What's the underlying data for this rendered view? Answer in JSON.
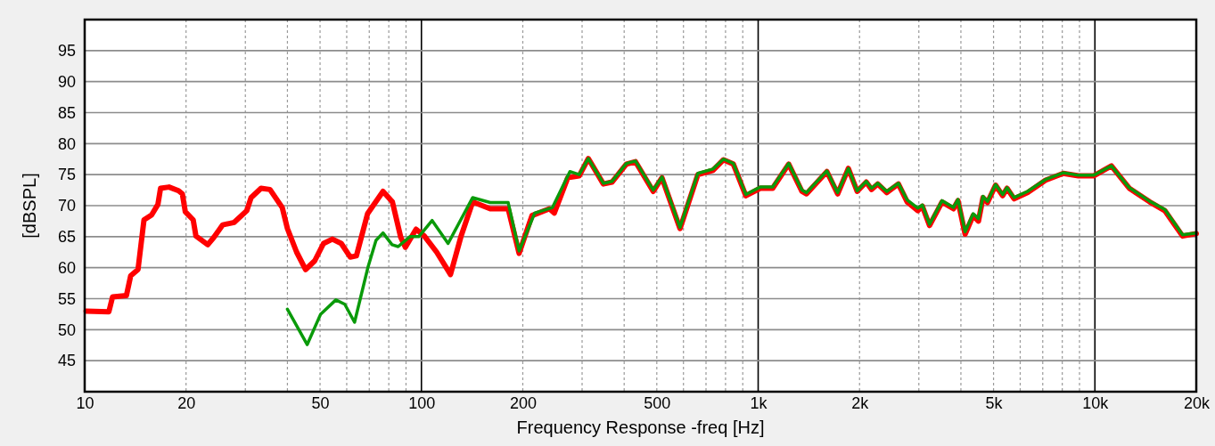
{
  "chart_data": {
    "type": "line",
    "xlabel": "Frequency Response -freq [Hz]",
    "ylabel": "[dBSPL]",
    "log": "x",
    "grid": true,
    "xlim": [
      10,
      20000
    ],
    "ylim": [
      40,
      100
    ],
    "xticks": [
      10,
      20,
      {
        "value": 30,
        "label": null
      },
      {
        "value": 40,
        "label": null
      },
      50,
      {
        "value": 60,
        "label": null
      },
      {
        "value": 70,
        "label": null
      },
      {
        "value": 80,
        "label": null
      },
      {
        "value": 90,
        "label": null
      },
      100,
      200,
      {
        "value": 300,
        "label": null
      },
      {
        "value": 400,
        "label": null
      },
      500,
      {
        "value": 600,
        "label": null
      },
      {
        "value": 700,
        "label": null
      },
      {
        "value": 800,
        "label": null
      },
      {
        "value": 900,
        "label": null
      },
      {
        "value": 1000,
        "label": "1k"
      },
      {
        "value": 2000,
        "label": "2k"
      },
      {
        "value": 3000,
        "label": null
      },
      {
        "value": 4000,
        "label": null
      },
      {
        "value": 5000,
        "label": "5k"
      },
      {
        "value": 6000,
        "label": null
      },
      {
        "value": 7000,
        "label": null
      },
      {
        "value": 8000,
        "label": null
      },
      {
        "value": 9000,
        "label": null
      },
      {
        "value": 10000,
        "label": "10k"
      },
      {
        "value": 20000,
        "label": "20k"
      }
    ],
    "yticks": [
      45,
      50,
      55,
      60,
      65,
      70,
      75,
      80,
      85,
      90,
      95
    ],
    "series": [
      {
        "color": "#ff0000",
        "x": [
          10.1,
          11.8,
          12.1,
          13.3,
          13.7,
          14.4,
          15.0,
          15.8,
          16.5,
          16.8,
          17.8,
          19.0,
          19.5,
          19.9,
          21.0,
          21.4,
          23.2,
          24.2,
          25.7,
          27.8,
          30.3,
          31.2,
          33.4,
          35.5,
          38.6,
          40.0,
          42.6,
          45.3,
          48.2,
          51.2,
          54.4,
          57.8,
          61.5,
          64.1,
          69.2,
          76.9,
          82.0,
          86.8,
          89.6,
          96.4,
          102,
          111,
          122,
          131,
          142,
          160,
          181,
          195,
          213,
          240,
          248,
          272,
          294,
          313,
          347,
          368,
          406,
          432,
          488,
          518,
          586,
          662,
          734,
          789,
          844,
          919,
          1014,
          1104,
          1232,
          1349,
          1392,
          1600,
          1722,
          1853,
          1968,
          2094,
          2172,
          2265,
          2409,
          2608,
          2771,
          2980,
          3074,
          3227,
          3516,
          3802,
          3920,
          4117,
          4350,
          4510,
          4652,
          4797,
          5070,
          5322,
          5483,
          5756,
          6310,
          7129,
          8054,
          8933,
          9908,
          11194,
          12647,
          14554,
          16124,
          18209,
          20000
        ],
        "values": [
          53,
          52.9,
          55.3,
          55.5,
          58.7,
          59.7,
          67.7,
          68.5,
          70.2,
          72.8,
          73,
          72.4,
          71.9,
          69,
          67.7,
          65.1,
          63.7,
          64.9,
          66.9,
          67.3,
          69.2,
          71.3,
          72.8,
          72.6,
          69.7,
          66.3,
          62.5,
          59.7,
          61.1,
          63.9,
          64.6,
          63.9,
          61.7,
          61.9,
          68.7,
          72.3,
          70.6,
          64.9,
          63.3,
          66.2,
          65.1,
          62.5,
          58.9,
          65,
          70.6,
          69.5,
          69.5,
          62.3,
          68.4,
          69.5,
          68.8,
          74.5,
          74.8,
          77.6,
          73.5,
          73.8,
          76.7,
          77.1,
          72.3,
          74.5,
          66.3,
          75,
          75.7,
          77.4,
          76.7,
          71.6,
          72.8,
          72.8,
          76.7,
          72.3,
          71.9,
          75.5,
          71.9,
          76,
          72.3,
          73.8,
          72.6,
          73.5,
          72.1,
          73.5,
          70.6,
          69.2,
          69.9,
          66.8,
          70.6,
          69.5,
          70.8,
          65.4,
          68.4,
          67.5,
          71.3,
          70.5,
          73.3,
          71.6,
          72.8,
          71.1,
          72.1,
          74.1,
          75.2,
          74.8,
          74.8,
          76.4,
          72.8,
          70.6,
          69.2,
          65.1,
          65.5
        ]
      },
      {
        "color": "#0a9a0a",
        "x": [
          40.0,
          45.8,
          50.2,
          55.7,
          59.2,
          63.3,
          69.4,
          73.3,
          76.9,
          81.8,
          85.3,
          92.4,
          98.2,
          107.6,
          120,
          142,
          160,
          181,
          195,
          217,
          245,
          276,
          294,
          313,
          347,
          368,
          406,
          432,
          488,
          518,
          586,
          662,
          734,
          789,
          844,
          919,
          1014,
          1104,
          1232,
          1349,
          1392,
          1600,
          1722,
          1853,
          1968,
          2094,
          2172,
          2265,
          2409,
          2608,
          2771,
          2980,
          3074,
          3227,
          3516,
          3802,
          3920,
          4117,
          4350,
          4510,
          4652,
          4797,
          5070,
          5322,
          5483,
          5756,
          6310,
          7129,
          8054,
          8933,
          9908,
          11194,
          12647,
          14554,
          16124,
          18209,
          20000
        ],
        "values": [
          53.3,
          47.6,
          52.5,
          54.8,
          54.1,
          51.2,
          60.1,
          64.4,
          65.6,
          63.7,
          63.4,
          65,
          65,
          67.6,
          63.9,
          71.3,
          70.5,
          70.5,
          62.7,
          68.8,
          69.7,
          75.5,
          75,
          77.6,
          73.6,
          73.9,
          76.8,
          77.2,
          72.5,
          74.6,
          66.5,
          75.2,
          75.9,
          77.5,
          76.8,
          71.8,
          73,
          73,
          76.8,
          72.5,
          72.1,
          75.6,
          72.1,
          76,
          72.4,
          73.9,
          72.8,
          73.6,
          72.3,
          73.6,
          70.9,
          69.6,
          70.1,
          67,
          70.8,
          69.7,
          71,
          65.8,
          68.7,
          67.9,
          71.5,
          70.7,
          73.4,
          71.8,
          72.9,
          71.3,
          72.3,
          74.2,
          75.3,
          74.9,
          74.9,
          76.4,
          72.9,
          70.7,
          69.4,
          65.3,
          65.6
        ]
      }
    ]
  }
}
